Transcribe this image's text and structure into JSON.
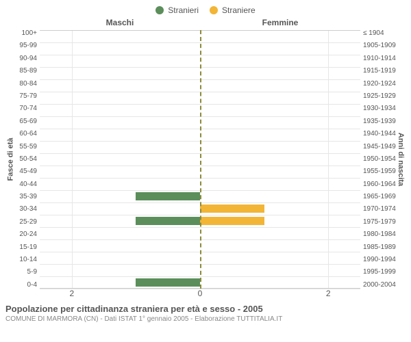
{
  "chart": {
    "type": "population-pyramid",
    "legend": [
      {
        "label": "Stranieri",
        "color": "#5b8e5b"
      },
      {
        "label": "Straniere",
        "color": "#f2b536"
      }
    ],
    "header_left": "Maschi",
    "header_right": "Femmine",
    "yaxis_left_title": "Fasce di età",
    "yaxis_right_title": "Anni di nascita",
    "age_labels": [
      "100+",
      "95-99",
      "90-94",
      "85-89",
      "80-84",
      "75-79",
      "70-74",
      "65-69",
      "60-64",
      "55-59",
      "50-54",
      "45-49",
      "40-44",
      "35-39",
      "30-34",
      "25-29",
      "20-24",
      "15-19",
      "10-14",
      "5-9",
      "0-4"
    ],
    "birth_labels": [
      "≤ 1904",
      "1905-1909",
      "1910-1914",
      "1915-1919",
      "1920-1924",
      "1925-1929",
      "1930-1934",
      "1935-1939",
      "1940-1944",
      "1945-1949",
      "1950-1954",
      "1955-1959",
      "1960-1964",
      "1965-1969",
      "1970-1974",
      "1975-1979",
      "1980-1984",
      "1985-1989",
      "1990-1994",
      "1995-1999",
      "2000-2004"
    ],
    "male_values": [
      0,
      0,
      0,
      0,
      0,
      0,
      0,
      0,
      0,
      0,
      0,
      0,
      0,
      1,
      0,
      1,
      0,
      0,
      0,
      0,
      1
    ],
    "female_values": [
      0,
      0,
      0,
      0,
      0,
      0,
      0,
      0,
      0,
      0,
      0,
      0,
      0,
      0,
      1,
      1,
      0,
      0,
      0,
      0,
      0
    ],
    "x_ticks": [
      2,
      0,
      2
    ],
    "x_max": 2.5,
    "bar_color_male": "#5b8e5b",
    "bar_color_female": "#f2b536",
    "center_line_color": "#8b8b3a",
    "grid_color": "#e6e6e6",
    "background_color": "#ffffff"
  },
  "footer": {
    "title": "Popolazione per cittadinanza straniera per età e sesso - 2005",
    "subtitle": "COMUNE DI MARMORA (CN) - Dati ISTAT 1° gennaio 2005 - Elaborazione TUTTITALIA.IT"
  }
}
